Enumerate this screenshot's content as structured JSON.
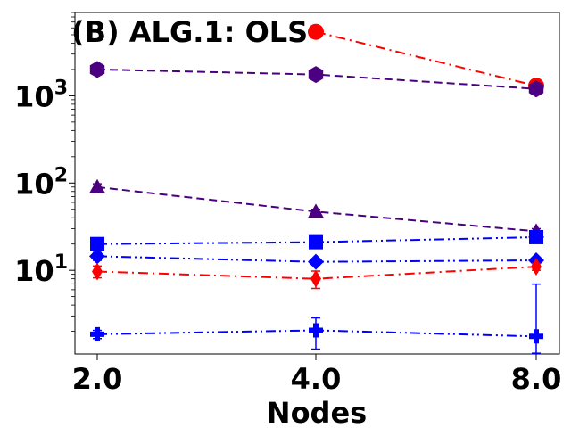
{
  "chart_data": {
    "type": "line",
    "title": "(B) ALG.1: OLS",
    "xlabel": "Nodes",
    "ylabel": "",
    "x": [
      2.0,
      4.0,
      8.0
    ],
    "x_tick_labels": [
      "2.0",
      "4.0",
      "8.0"
    ],
    "y_scale": "log",
    "y_tick_values": [
      10,
      100,
      1000
    ],
    "y_tick_labels": [
      {
        "base": "10",
        "exp": "1"
      },
      {
        "base": "10",
        "exp": "2"
      },
      {
        "base": "10",
        "exp": "3"
      }
    ],
    "ylim": [
      1.1,
      9000
    ],
    "grid": false,
    "legend": "none",
    "series": [
      {
        "color": "#ff0000",
        "dash": "dashdot",
        "marker": "circle",
        "values": [
          null,
          5400,
          1300
        ],
        "err": [
          null,
          0,
          0
        ]
      },
      {
        "color": "#4b0082",
        "dash": "dashed",
        "marker": "hexagon",
        "values": [
          2000,
          1750,
          1200
        ],
        "err": [
          0,
          0,
          0
        ]
      },
      {
        "color": "#4b0082",
        "dash": "dashed",
        "marker": "triangle-up",
        "values": [
          90,
          47,
          28
        ],
        "err": [
          8,
          3,
          2
        ]
      },
      {
        "color": "#0000ff",
        "dash": "dashdotdot",
        "marker": "square",
        "values": [
          20,
          21,
          24
        ],
        "err": [
          1.5,
          1,
          1
        ]
      },
      {
        "color": "#0000ff",
        "dash": "dashdotdot",
        "marker": "diamond",
        "values": [
          14.5,
          12.5,
          13
        ],
        "err": [
          1.5,
          1,
          0.5
        ]
      },
      {
        "color": "#ff0000",
        "dash": "dashdot",
        "marker": "thin-diamond",
        "values": [
          9.7,
          8,
          11
        ],
        "err": [
          1.5,
          1.8,
          1
        ]
      },
      {
        "color": "#0000ff",
        "dash": "dashdotdot",
        "marker": "plus",
        "values": [
          1.85,
          2.05,
          1.75
        ],
        "err": [
          0.2,
          0.8,
          5.2
        ]
      }
    ]
  }
}
